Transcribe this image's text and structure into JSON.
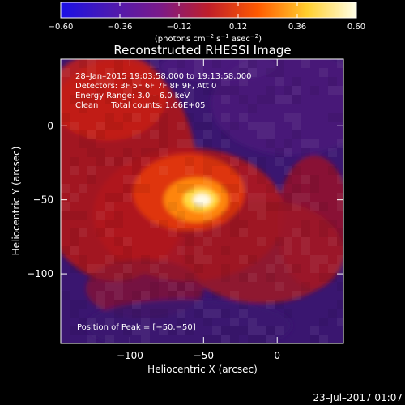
{
  "chart_data": {
    "type": "heatmap",
    "title": "Reconstructed RHESSI Image",
    "xlabel": "Heliocentric X (arcsec)",
    "ylabel": "Heliocentric Y (arcsec)",
    "xlim": [
      -147,
      45
    ],
    "ylim": [
      -147,
      45
    ],
    "x_ticks": [
      -100,
      -50,
      0
    ],
    "x_tick_labels": [
      "−100",
      "−50",
      "0"
    ],
    "y_ticks": [
      0,
      -50,
      -100
    ],
    "y_tick_labels": [
      "0",
      "−50",
      "−100"
    ],
    "colorbar": {
      "range": [
        -0.6,
        0.6
      ],
      "ticks": [
        -0.6,
        -0.36,
        -0.12,
        0.12,
        0.36,
        0.6
      ],
      "tick_labels": [
        "−0.60",
        "−0.36",
        "−0.12",
        "0.12",
        "0.36",
        "0.60"
      ],
      "units_prefix": "(photons cm",
      "units_sup1": "−2",
      "units_mid1": " s",
      "units_sup2": "−1",
      "units_mid2": " asec",
      "units_sup3": "−2",
      "units_suffix": ")",
      "colors": [
        "#1a10e6",
        "#4b1ab2",
        "#7a1a8a",
        "#c01e2a",
        "#ff5a00",
        "#ffcf2e",
        "#ffffe8"
      ]
    },
    "peak": {
      "x": -50,
      "y": -50,
      "value": 0.6
    },
    "annotations": {
      "time_range": "28–Jan–2015 19:03:58.000 to 19:13:58.000",
      "detectors": "Detectors: 3F 5F 6F 7F 8F 9F, Att 0",
      "energy": "Energy Range: 3.0 – 6.0 keV",
      "clean": "Clean     Total counts: 1.66E+05",
      "peak_position": "Position of Peak = [−50,−50]"
    },
    "footer_date": "23–Jul–2017 01:07"
  }
}
